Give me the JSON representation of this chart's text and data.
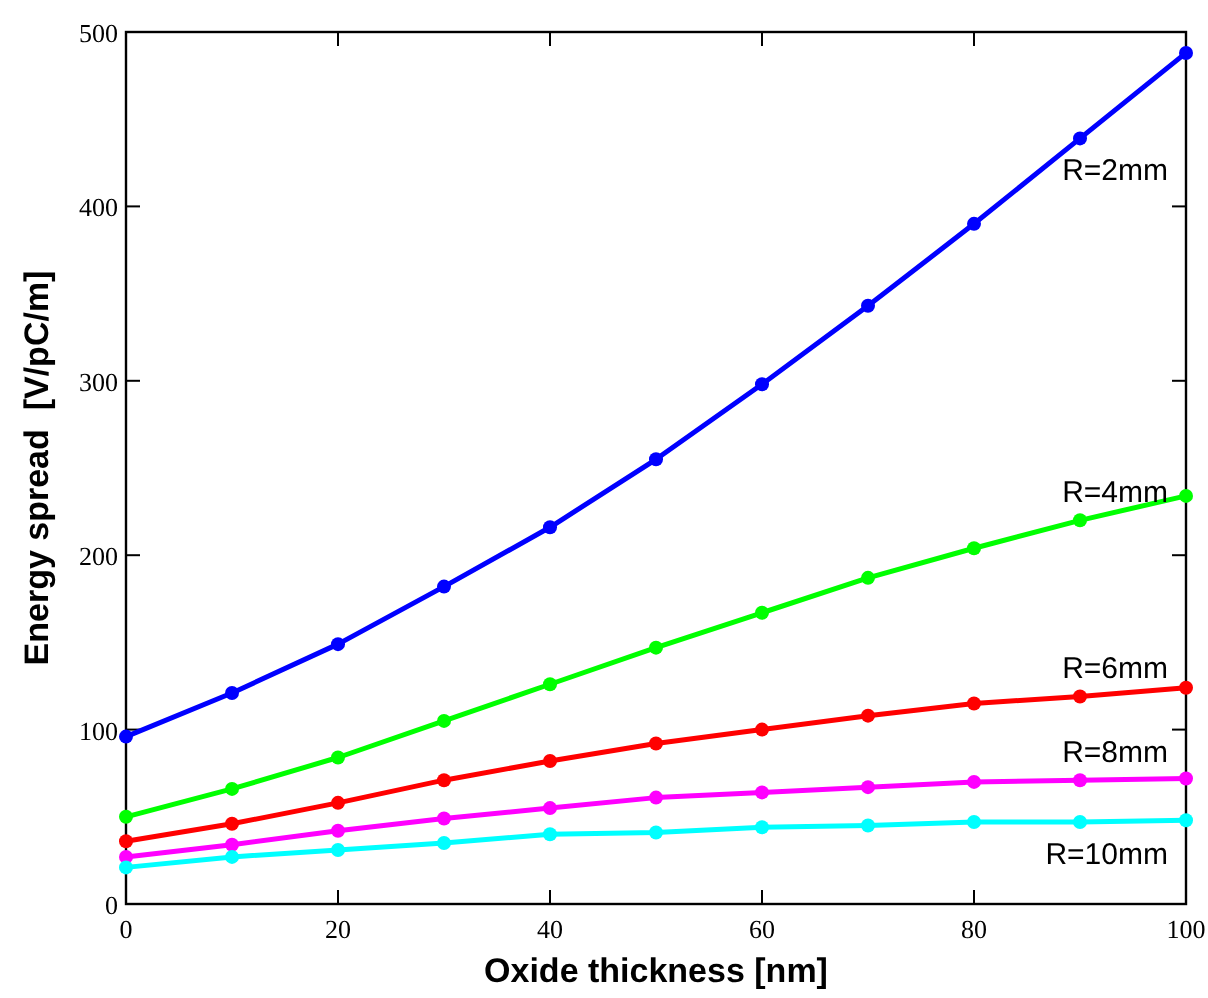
{
  "chart_data": {
    "type": "line",
    "xlabel": "Oxide thickness [nm]",
    "ylabel": "Energy spread  [V/pC/m]",
    "x": [
      0,
      10,
      20,
      30,
      40,
      50,
      60,
      70,
      80,
      90,
      100
    ],
    "xlim": [
      0,
      100
    ],
    "xticks": [
      0,
      20,
      40,
      60,
      80,
      100
    ],
    "ylim": [
      0,
      500
    ],
    "yticks": [
      0,
      100,
      200,
      300,
      400,
      500
    ],
    "grid": false,
    "marker": "circle",
    "line_style": "solid",
    "series": [
      {
        "name": "R=2mm",
        "color": "#0000ff",
        "values": [
          96,
          121,
          149,
          182,
          216,
          255,
          298,
          343,
          390,
          439,
          488
        ]
      },
      {
        "name": "R=4mm",
        "color": "#00ff00",
        "values": [
          50,
          66,
          84,
          105,
          126,
          147,
          167,
          187,
          204,
          220,
          234
        ]
      },
      {
        "name": "R=6mm",
        "color": "#ff0000",
        "values": [
          36,
          46,
          58,
          71,
          82,
          92,
          100,
          108,
          115,
          119,
          124
        ]
      },
      {
        "name": "R=8mm",
        "color": "#ff00ff",
        "values": [
          27,
          34,
          42,
          49,
          55,
          61,
          64,
          67,
          70,
          71,
          72
        ]
      },
      {
        "name": "R=10mm",
        "color": "#00ffff",
        "values": [
          21,
          27,
          31,
          35,
          40,
          41,
          44,
          45,
          47,
          47,
          48
        ]
      }
    ]
  }
}
